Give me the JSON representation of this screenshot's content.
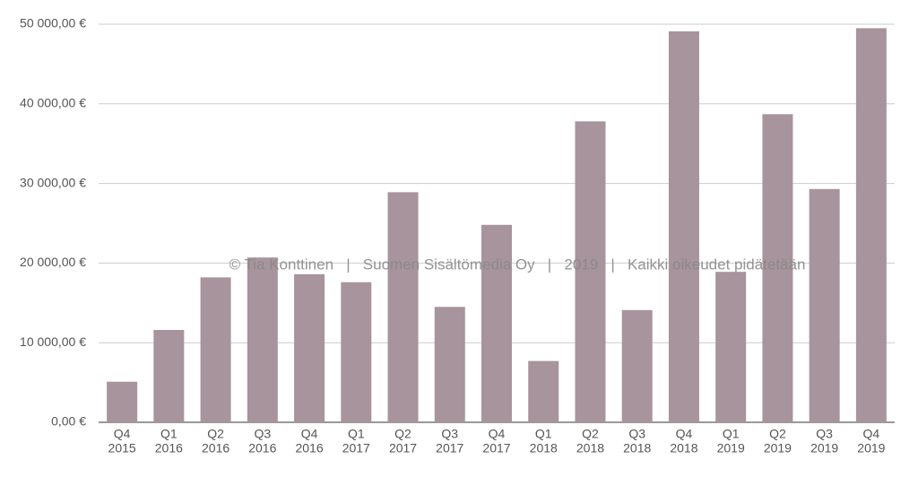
{
  "chart_data": {
    "type": "bar",
    "categories": [
      [
        "Q4",
        "2015"
      ],
      [
        "Q1",
        "2016"
      ],
      [
        "Q2",
        "2016"
      ],
      [
        "Q3",
        "2016"
      ],
      [
        "Q4",
        "2016"
      ],
      [
        "Q1",
        "2017"
      ],
      [
        "Q2",
        "2017"
      ],
      [
        "Q3",
        "2017"
      ],
      [
        "Q4",
        "2017"
      ],
      [
        "Q1",
        "2018"
      ],
      [
        "Q2",
        "2018"
      ],
      [
        "Q3",
        "2018"
      ],
      [
        "Q4",
        "2018"
      ],
      [
        "Q1",
        "2019"
      ],
      [
        "Q2",
        "2019"
      ],
      [
        "Q3",
        "2019"
      ],
      [
        "Q4",
        "2019"
      ]
    ],
    "values": [
      5100,
      11600,
      18200,
      20700,
      18600,
      17600,
      28900,
      14500,
      24800,
      7700,
      37800,
      14100,
      49100,
      18900,
      38700,
      29300,
      49500
    ],
    "color": "#a8949c",
    "ylim": [
      0,
      50000
    ],
    "yticks": [
      {
        "value": 0,
        "label": "0,00 €"
      },
      {
        "value": 10000,
        "label": "10 000,00 €"
      },
      {
        "value": 20000,
        "label": "20 000,00 €"
      },
      {
        "value": 30000,
        "label": "30 000,00 €"
      },
      {
        "value": 40000,
        "label": "40 000,00 €"
      },
      {
        "value": 50000,
        "label": "50 000,00 €"
      }
    ],
    "grid": true,
    "annotation": "© Tia Konttinen   |   Suomen Sisältömedia Oy   |   2019   |   Kaikki oikeudet pidätetään"
  }
}
